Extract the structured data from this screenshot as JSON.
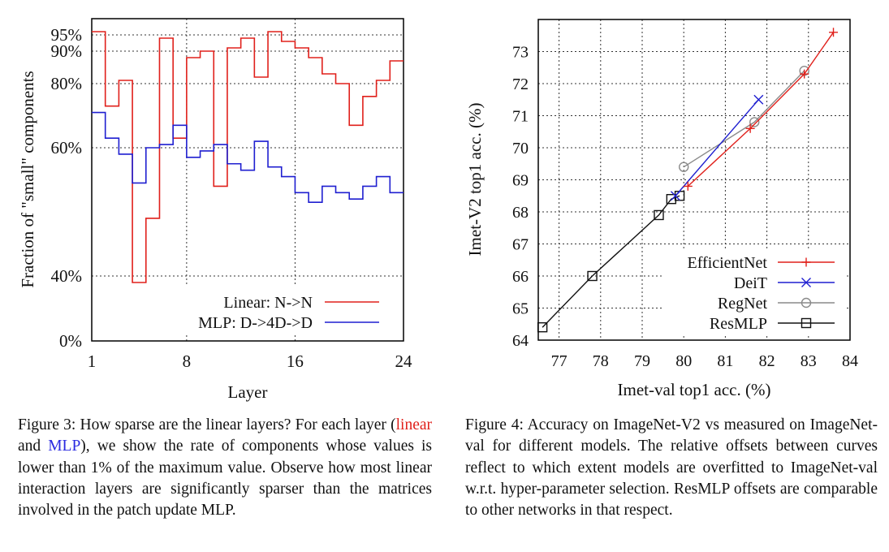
{
  "figure3": {
    "caption_prefix": "Figure 3: How sparse are the linear layers? For each layer (",
    "caption_linear": "linear",
    "caption_and": " and ",
    "caption_mlp": "MLP",
    "caption_suffix": "), we show the rate of components whose values is lower than 1% of the maximum value. Observe how most linear interaction layers are significantly sparser than the matrices involved in the patch update MLP."
  },
  "figure4": {
    "caption": "Figure 4: Accuracy on ImageNet-V2 vs measured on ImageNet-val for different models. The relative offsets between curves reflect to which extent models are overfitted to ImageNet-val w.r.t. hyper-parameter selection. ResMLP offsets are comparable to other networks in that respect."
  },
  "chart_data": [
    {
      "type": "line",
      "style": "steps",
      "xlabel": "Layer",
      "ylabel": "Fraction of \"small\" components",
      "x_ticks": [
        "1",
        "8",
        "16",
        "24"
      ],
      "x_tick_values": [
        1,
        8,
        16,
        24
      ],
      "y_ticks": [
        "0%",
        "40%",
        "60%",
        "80%",
        "90%",
        "95%"
      ],
      "y_tick_values": [
        0,
        40,
        60,
        80,
        90,
        95
      ],
      "y_scale": "nonlinear",
      "xlim": [
        1,
        24
      ],
      "ylim": [
        0,
        100
      ],
      "grid": true,
      "legend_position": "bottom-right",
      "x": [
        1,
        2,
        3,
        4,
        5,
        6,
        7,
        8,
        9,
        10,
        11,
        12,
        13,
        14,
        15,
        16,
        17,
        18,
        19,
        20,
        21,
        22,
        23,
        24
      ],
      "series": [
        {
          "name": "Linear: N->N",
          "color": "#e0201b",
          "values": [
            96,
            73,
            81,
            36,
            49,
            94,
            63,
            88,
            90,
            54,
            91,
            94,
            82,
            96,
            93,
            91,
            88,
            83,
            80,
            67,
            76,
            81,
            87,
            87
          ]
        },
        {
          "name": "MLP: D->4D->D",
          "color": "#1f1fd0",
          "values": [
            71,
            63,
            59,
            54.5,
            60,
            61,
            67,
            58.5,
            59.5,
            61,
            57.5,
            56.5,
            62,
            57,
            55.5,
            53,
            51.5,
            54,
            53,
            52,
            54,
            55.5,
            53,
            53
          ]
        }
      ]
    },
    {
      "type": "line",
      "xlabel": "Imet-val top1 acc. (%)",
      "ylabel": "Imet-V2 top1 acc. (%)",
      "x_ticks": [
        "77",
        "78",
        "79",
        "80",
        "81",
        "82",
        "83",
        "84"
      ],
      "y_ticks": [
        "64",
        "65",
        "66",
        "67",
        "68",
        "69",
        "70",
        "71",
        "72",
        "73"
      ],
      "xlim": [
        76.5,
        84
      ],
      "ylim": [
        64,
        74
      ],
      "grid": true,
      "legend_position": "bottom-right",
      "series": [
        {
          "name": "EfficientNet",
          "color": "#e0201b",
          "marker": "plus",
          "points": [
            [
              80.1,
              68.8
            ],
            [
              81.6,
              70.6
            ],
            [
              82.9,
              72.3
            ],
            [
              83.6,
              73.6
            ]
          ]
        },
        {
          "name": "DeiT",
          "color": "#1f1fd0",
          "marker": "cross",
          "points": [
            [
              79.8,
              68.5
            ],
            [
              81.8,
              71.5
            ]
          ]
        },
        {
          "name": "RegNet",
          "color": "#8a8a8a",
          "marker": "circle",
          "points": [
            [
              80.0,
              69.4
            ],
            [
              81.7,
              70.8
            ],
            [
              82.9,
              72.4
            ]
          ]
        },
        {
          "name": "ResMLP",
          "color": "#111111",
          "marker": "square",
          "points": [
            [
              76.6,
              64.4
            ],
            [
              77.8,
              66.0
            ],
            [
              79.4,
              67.9
            ],
            [
              79.7,
              68.4
            ],
            [
              79.9,
              68.5
            ]
          ]
        }
      ]
    }
  ]
}
